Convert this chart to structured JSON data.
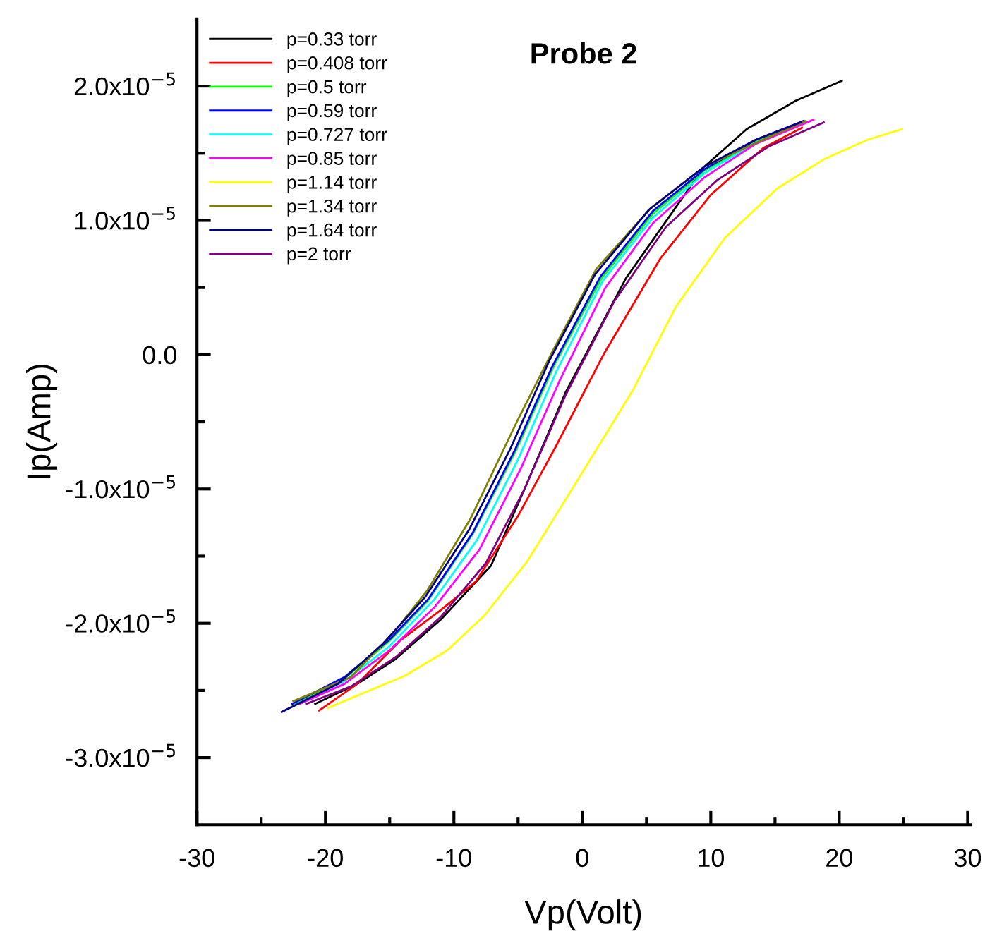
{
  "chart_data": {
    "type": "line",
    "title": "Probe 2",
    "xlabel": "Vp(Volt)",
    "ylabel": "Ip(Amp)",
    "xlim": [
      -30,
      30.2
    ],
    "ylim": [
      -3.5e-05,
      2.5e-05
    ],
    "xticks": [
      -30,
      {
        "value": -25,
        "label": null
      },
      -20,
      {
        "value": -15,
        "label": null
      },
      -10,
      {
        "value": -5,
        "label": null
      },
      0,
      {
        "value": 5,
        "label": null
      },
      10,
      {
        "value": 15,
        "label": null
      },
      20,
      {
        "value": 25,
        "label": null
      },
      30
    ],
    "yticks": [
      {
        "value": -3e-05,
        "label": "-3.0x10$^{−5}$"
      },
      {
        "value": -2.5e-05,
        "label": null
      },
      {
        "value": -2e-05,
        "label": "-2.0x10$^{−5}$"
      },
      {
        "value": -1.5e-05,
        "label": null
      },
      {
        "value": -1e-05,
        "label": "-1.0x10$^{−5}$"
      },
      {
        "value": -5e-06,
        "label": null
      },
      {
        "value": 0,
        "label": "0.0"
      },
      {
        "value": 5e-06,
        "label": null
      },
      {
        "value": 1e-05,
        "label": "1.0x10$^{−5}$"
      },
      {
        "value": 1.5e-05,
        "label": null
      },
      {
        "value": 2e-05,
        "label": "2.0x10$^{−5}$"
      }
    ],
    "grid": false,
    "legend": "top left",
    "line_style": "solid",
    "marker": "none",
    "series": [
      {
        "name": "p=0.33 torr",
        "color": "#000000",
        "x": [
          -20.8,
          -17.5,
          -14.6,
          -11,
          -7.1,
          -4.5,
          -1.3,
          3.4,
          9.5,
          12.8,
          16.6,
          20.2
        ],
        "values": [
          -2.6e-05,
          -2.45e-05,
          -2.27e-05,
          -1.97e-05,
          -1.57e-05,
          -1e-05,
          -2.8e-06,
          5.7e-06,
          1.4e-05,
          1.68e-05,
          1.89e-05,
          2.04e-05
        ]
      },
      {
        "name": "p=0.408 torr",
        "color": "#ff0000",
        "x": [
          -20.5,
          -17.5,
          -14.2,
          -11,
          -8.3,
          -5,
          -2.1,
          1.7,
          6.1,
          10,
          14.1,
          17.1
        ],
        "values": [
          -2.65e-05,
          -2.45e-05,
          -2.13e-05,
          -1.9e-05,
          -1.69e-05,
          -1.2e-05,
          -6.9e-06,
          1e-07,
          7.2e-06,
          1.19e-05,
          1.54e-05,
          1.69e-05
        ]
      },
      {
        "name": "p=0.5 torr",
        "color": "#00ff00",
        "x": [
          -22.5,
          -18.5,
          -15,
          -12,
          -8.5,
          -5.2,
          -2.2,
          1.5,
          5.5,
          9.5,
          13.5,
          17.3
        ],
        "values": [
          -2.6e-05,
          -2.41e-05,
          -2.13e-05,
          -1.83e-05,
          -1.33e-05,
          -7.2e-06,
          -8e-07,
          5.7e-06,
          1.05e-05,
          1.37e-05,
          1.59e-05,
          1.74e-05
        ]
      },
      {
        "name": "p=0.59 torr",
        "color": "#0000ff",
        "x": [
          -22.6,
          -18.5,
          -15,
          -12,
          -8.5,
          -5.3,
          -2.3,
          1.4,
          5.5,
          9.5,
          13.5,
          17.2
        ],
        "values": [
          -2.6e-05,
          -2.4e-05,
          -2.12e-05,
          -1.82e-05,
          -1.32e-05,
          -7.2e-06,
          -8e-07,
          5.8e-06,
          1.07e-05,
          1.38e-05,
          1.6e-05,
          1.74e-05
        ]
      },
      {
        "name": "p=0.727 torr",
        "color": "#00ffff",
        "x": [
          -22.2,
          -18.5,
          -15,
          -11.5,
          -8.2,
          -5,
          -2,
          1.6,
          5.5,
          9.5,
          13.5,
          17.5
        ],
        "values": [
          -2.6e-05,
          -2.43e-05,
          -2.17e-05,
          -1.82e-05,
          -1.38e-05,
          -7.8e-06,
          -1.2e-06,
          5.5e-06,
          1.02e-05,
          1.35e-05,
          1.58e-05,
          1.73e-05
        ]
      },
      {
        "name": "p=0.85 torr",
        "color": "#ff00ff",
        "x": [
          -22,
          -18.5,
          -15,
          -11.5,
          -8,
          -4.8,
          -1.8,
          1.8,
          5.5,
          9.5,
          13.5,
          18
        ],
        "values": [
          -2.6e-05,
          -2.45e-05,
          -2.2e-05,
          -1.88e-05,
          -1.45e-05,
          -8.5e-06,
          -2e-06,
          5e-06,
          9.8e-06,
          1.32e-05,
          1.57e-05,
          1.75e-05
        ]
      },
      {
        "name": "p=1.14 torr",
        "color": "#ffff00",
        "x": [
          -19.8,
          -13.8,
          -10.5,
          -7.6,
          -4.3,
          -0.6,
          3.9,
          7.3,
          11.1,
          15.2,
          18.9,
          22.2,
          24.9
        ],
        "values": [
          -2.63e-05,
          -2.39e-05,
          -2.2e-05,
          -1.94e-05,
          -1.54e-05,
          -9.7e-06,
          -2.7e-06,
          3.6e-06,
          8.7e-06,
          1.24e-05,
          1.46e-05,
          1.6e-05,
          1.68e-05
        ]
      },
      {
        "name": "p=1.34 torr",
        "color": "#808000",
        "x": [
          -22.5,
          -18,
          -14.6,
          -12.1,
          -8.7,
          -5,
          -2.4,
          1.1,
          5.3,
          9.5,
          13.8,
          17.4
        ],
        "values": [
          -2.58e-05,
          -2.4e-05,
          -2.06e-05,
          -1.76e-05,
          -1.22e-05,
          -4.8e-06,
          1e-07,
          6.4e-06,
          1.09e-05,
          1.4e-05,
          1.59e-05,
          1.74e-05
        ]
      },
      {
        "name": "p=1.64 torr",
        "color": "#000080",
        "x": [
          -23.4,
          -19,
          -15.5,
          -12.2,
          -8.8,
          -5.6,
          -2.6,
          1.0,
          5.2,
          9.5,
          13.5,
          17
        ],
        "values": [
          -2.66e-05,
          -2.45e-05,
          -2.15e-05,
          -1.8e-05,
          -1.3e-05,
          -7e-06,
          -5e-07,
          6e-06,
          1.08e-05,
          1.4e-05,
          1.6e-05,
          1.73e-05
        ]
      },
      {
        "name": "p=2 torr",
        "color": "#800080",
        "x": [
          -21.5,
          -18,
          -14.5,
          -11,
          -7.5,
          -4.5,
          -1.3,
          2.5,
          6.5,
          10.5,
          14.5,
          18.8
        ],
        "values": [
          -2.6e-05,
          -2.47e-05,
          -2.25e-05,
          -1.95e-05,
          -1.55e-05,
          -1e-05,
          -3e-06,
          4e-06,
          9.5e-06,
          1.3e-05,
          1.55e-05,
          1.73e-05
        ]
      }
    ]
  }
}
